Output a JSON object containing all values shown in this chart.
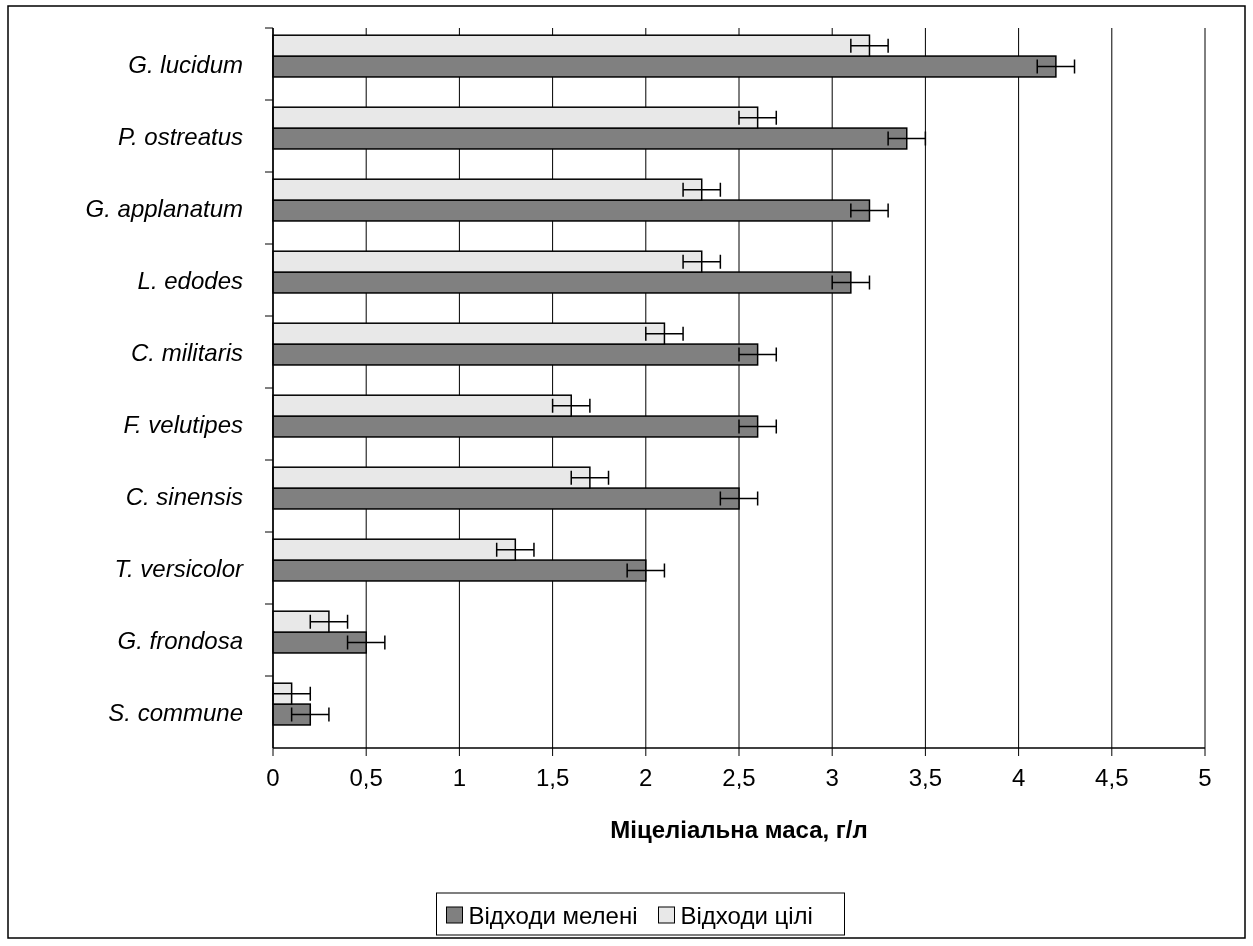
{
  "chart_data": {
    "type": "bar",
    "orientation": "horizontal",
    "xlabel": "Міцеліальна маса, г/л",
    "categories": [
      "G. lucidum",
      "P. ostreatus",
      "G. applanatum",
      "L. edodes",
      "C. militaris",
      "F. velutipes",
      "C. sinensis",
      "T. versicolor",
      "G. frondosa",
      "S. commune"
    ],
    "series": [
      {
        "name": "Відходи мелені",
        "color": "#808080",
        "values": [
          4.2,
          3.4,
          3.2,
          3.1,
          2.6,
          2.6,
          2.5,
          2.0,
          0.5,
          0.2
        ],
        "errors": [
          0.1,
          0.1,
          0.1,
          0.1,
          0.1,
          0.1,
          0.1,
          0.1,
          0.1,
          0.1
        ]
      },
      {
        "name": "Відходи цілі",
        "color": "#e8e8e8",
        "values": [
          3.2,
          2.6,
          2.3,
          2.3,
          2.1,
          1.6,
          1.7,
          1.3,
          0.3,
          0.1
        ],
        "errors": [
          0.1,
          0.1,
          0.1,
          0.1,
          0.1,
          0.1,
          0.1,
          0.1,
          0.1,
          0.1
        ]
      }
    ],
    "xlim": [
      0,
      5
    ],
    "xticks": [
      0,
      {
        "value": 0.5,
        "label": "0,5"
      },
      1,
      {
        "value": 1.5,
        "label": "1,5"
      },
      2,
      {
        "value": 2.5,
        "label": "2,5"
      },
      3,
      {
        "value": 3.5,
        "label": "3,5"
      },
      4,
      {
        "value": 4.5,
        "label": "4,5"
      },
      5
    ],
    "grid": "x",
    "legend": "bottom"
  }
}
